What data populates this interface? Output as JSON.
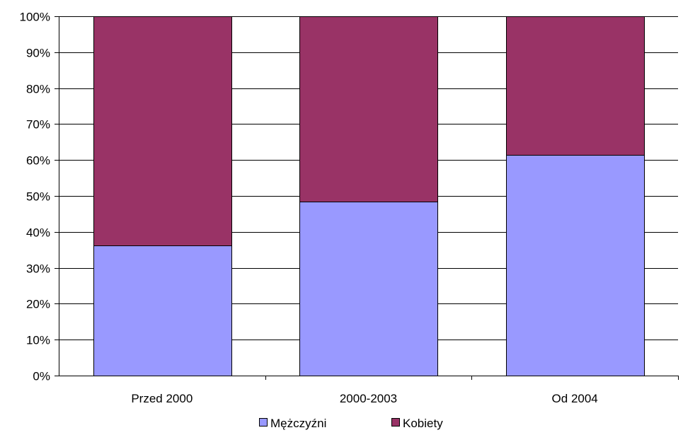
{
  "chart_data": {
    "type": "bar",
    "stacked": true,
    "percent_stacked": true,
    "categories": [
      "Przed 2000",
      "2000-2003",
      "Od 2004"
    ],
    "series": [
      {
        "name": "Mężczyźni",
        "color": "#9999ff",
        "values": [
          36.3,
          48.5,
          61.4
        ]
      },
      {
        "name": "Kobiety",
        "color": "#993366",
        "values": [
          63.7,
          51.5,
          38.6
        ]
      }
    ],
    "yticks": [
      "0%",
      "10%",
      "20%",
      "30%",
      "40%",
      "50%",
      "60%",
      "70%",
      "80%",
      "90%",
      "100%"
    ],
    "ylim": [
      0,
      100
    ],
    "grid": true,
    "legend_position": "bottom"
  }
}
